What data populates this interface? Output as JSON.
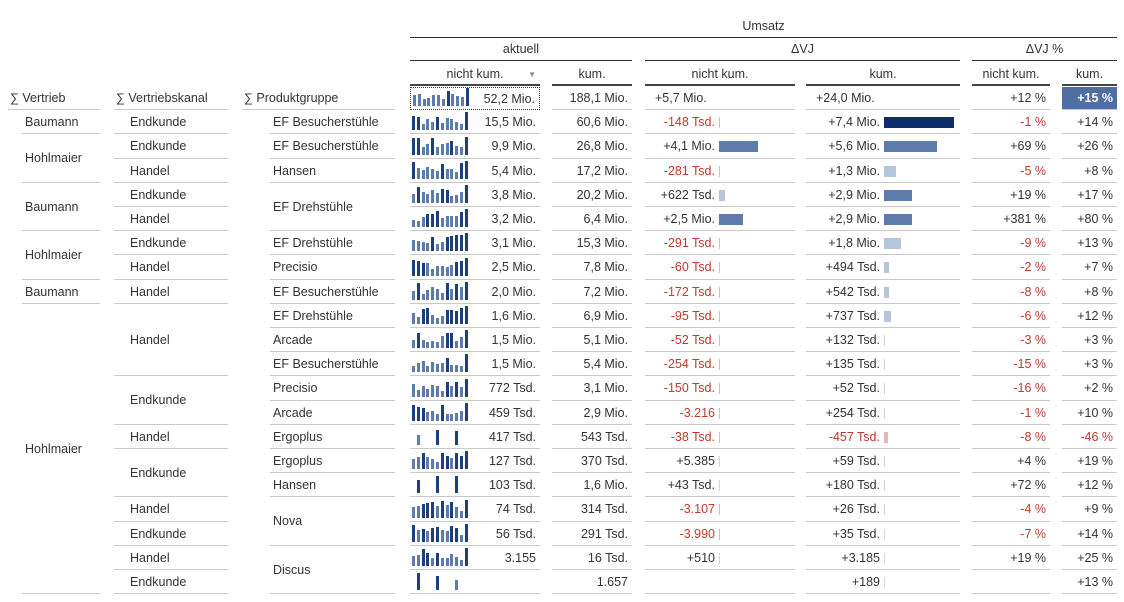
{
  "header": {
    "umsatz": "Umsatz",
    "aktuell": "aktuell",
    "dvj": "ΔVJ",
    "dvjp": "ΔVJ %",
    "nk": "nicht kum.",
    "k": "kum.",
    "filter_icon": "▼"
  },
  "dims": {
    "vertrieb": "∑ Vertrieb",
    "kanal": "∑ Vertriebskanal",
    "produkt": "∑ Produktgruppe"
  },
  "total": {
    "akt": "52,2 Mio.",
    "kum": "188,1 Mio.",
    "dnk": "+5,7 Mio.",
    "dk": "+24,0 Mio.",
    "pnk": "+12 %",
    "pk": "+15 %"
  },
  "colors": {
    "dark": "#0f2d6b",
    "mid": "#5d7bab",
    "light": "#b7c5da",
    "neg": "#c0392b",
    "highlight": "#4f6fa3"
  },
  "vertrieb": [
    {
      "label": "Baumann",
      "span": 1
    },
    {
      "label": "Hohlmaier",
      "span": 2
    },
    {
      "label": "Baumann",
      "span": 2
    },
    {
      "label": "Hohlmaier",
      "span": 2
    },
    {
      "label": "Baumann",
      "span": 1
    },
    {
      "label": "Hohlmaier",
      "span": 12
    }
  ],
  "kanal": [
    {
      "label": "Endkunde",
      "span": 1
    },
    {
      "label": "Endkunde",
      "span": 1
    },
    {
      "label": "Handel",
      "span": 1
    },
    {
      "label": "Endkunde",
      "span": 1
    },
    {
      "label": "Handel",
      "span": 1
    },
    {
      "label": "Endkunde",
      "span": 1
    },
    {
      "label": "Handel",
      "span": 1
    },
    {
      "label": "Handel",
      "span": 1
    },
    {
      "label": "Handel",
      "span": 3
    },
    {
      "label": "Endkunde",
      "span": 2
    },
    {
      "label": "Handel",
      "span": 1
    },
    {
      "label": "Endkunde",
      "span": 2
    },
    {
      "label": "Handel",
      "span": 1
    },
    {
      "label": "Endkunde",
      "span": 1
    },
    {
      "label": "Handel",
      "span": 1
    },
    {
      "label": "Endkunde",
      "span": 1
    }
  ],
  "produkt": [
    {
      "label": "EF Besucherstühle",
      "span": 1
    },
    {
      "label": "EF Besucherstühle",
      "span": 1
    },
    {
      "label": "Hansen",
      "span": 1
    },
    {
      "label": "EF Drehstühle",
      "span": 2
    },
    {
      "label": "EF Drehstühle",
      "span": 1
    },
    {
      "label": "Precisio",
      "span": 1
    },
    {
      "label": "EF Besucherstühle",
      "span": 1
    },
    {
      "label": "EF Drehstühle",
      "span": 1
    },
    {
      "label": "Arcade",
      "span": 1
    },
    {
      "label": "EF Besucherstühle",
      "span": 1
    },
    {
      "label": "Precisio",
      "span": 1
    },
    {
      "label": "Arcade",
      "span": 1
    },
    {
      "label": "Ergoplus",
      "span": 1
    },
    {
      "label": "Ergoplus",
      "span": 1
    },
    {
      "label": "Hansen",
      "span": 1
    },
    {
      "label": "Nova",
      "span": 2
    },
    {
      "label": "Discus",
      "span": 2
    }
  ],
  "rows": [
    {
      "akt": "15,5 Mio.",
      "kum": "60,6 Mio.",
      "dnk": "-148 Tsd.",
      "dk": "+7,4 Mio.",
      "pnk": "-1 %",
      "pk": "+14 %"
    },
    {
      "akt": "9,9 Mio.",
      "kum": "26,8 Mio.",
      "dnk": "+4,1 Mio.",
      "dk": "+5,6 Mio.",
      "pnk": "+69 %",
      "pk": "+26 %"
    },
    {
      "akt": "5,4 Mio.",
      "kum": "17,2 Mio.",
      "dnk": "-281 Tsd.",
      "dk": "+1,3 Mio.",
      "pnk": "-5 %",
      "pk": "+8 %"
    },
    {
      "akt": "3,8 Mio.",
      "kum": "20,2 Mio.",
      "dnk": "+622 Tsd.",
      "dk": "+2,9 Mio.",
      "pnk": "+19 %",
      "pk": "+17 %"
    },
    {
      "akt": "3,2 Mio.",
      "kum": "6,4 Mio.",
      "dnk": "+2,5 Mio.",
      "dk": "+2,9 Mio.",
      "pnk": "+381 %",
      "pk": "+80 %"
    },
    {
      "akt": "3,1 Mio.",
      "kum": "15,3 Mio.",
      "dnk": "-291 Tsd.",
      "dk": "+1,8 Mio.",
      "pnk": "-9 %",
      "pk": "+13 %"
    },
    {
      "akt": "2,5 Mio.",
      "kum": "7,8 Mio.",
      "dnk": "-60 Tsd.",
      "dk": "+494 Tsd.",
      "pnk": "-2 %",
      "pk": "+7 %"
    },
    {
      "akt": "2,0 Mio.",
      "kum": "7,2 Mio.",
      "dnk": "-172 Tsd.",
      "dk": "+542 Tsd.",
      "pnk": "-8 %",
      "pk": "+8 %"
    },
    {
      "akt": "1,6 Mio.",
      "kum": "6,9 Mio.",
      "dnk": "-95 Tsd.",
      "dk": "+737 Tsd.",
      "pnk": "-6 %",
      "pk": "+12 %"
    },
    {
      "akt": "1,5 Mio.",
      "kum": "5,1 Mio.",
      "dnk": "-52 Tsd.",
      "dk": "+132 Tsd.",
      "pnk": "-3 %",
      "pk": "+3 %"
    },
    {
      "akt": "1,5 Mio.",
      "kum": "5,4 Mio.",
      "dnk": "-254 Tsd.",
      "dk": "+135 Tsd.",
      "pnk": "-15 %",
      "pk": "+3 %"
    },
    {
      "akt": "772 Tsd.",
      "kum": "3,1 Mio.",
      "dnk": "-150 Tsd.",
      "dk": "+52 Tsd.",
      "pnk": "-16 %",
      "pk": "+2 %"
    },
    {
      "akt": "459 Tsd.",
      "kum": "2,9 Mio.",
      "dnk": "-3.216",
      "dk": "+254 Tsd.",
      "pnk": "-1 %",
      "pk": "+10 %"
    },
    {
      "akt": "417 Tsd.",
      "kum": "543 Tsd.",
      "dnk": "-38 Tsd.",
      "dk": "-457 Tsd.",
      "pnk": "-8 %",
      "pk": "-46 %"
    },
    {
      "akt": "127 Tsd.",
      "kum": "370 Tsd.",
      "dnk": "+5.385",
      "dk": "+59 Tsd.",
      "pnk": "+4 %",
      "pk": "+19 %"
    },
    {
      "akt": "103 Tsd.",
      "kum": "1,6 Mio.",
      "dnk": "+43 Tsd.",
      "dk": "+180 Tsd.",
      "pnk": "+72 %",
      "pk": "+12 %"
    },
    {
      "akt": "74 Tsd.",
      "kum": "314 Tsd.",
      "dnk": "-3.107",
      "dk": "+26 Tsd.",
      "pnk": "-4 %",
      "pk": "+9 %"
    },
    {
      "akt": "56 Tsd.",
      "kum": "291 Tsd.",
      "dnk": "-3.990",
      "dk": "+35 Tsd.",
      "pnk": "-7 %",
      "pk": "+14 %"
    },
    {
      "akt": "3.155",
      "kum": "16 Tsd.",
      "dnk": "+510",
      "dk": "+3.185",
      "pnk": "+19 %",
      "pk": "+25 %"
    },
    {
      "akt": "",
      "kum": "1.657",
      "dnk": "",
      "dk": "+189",
      "pnk": "",
      "pk": "+13 %"
    }
  ]
}
